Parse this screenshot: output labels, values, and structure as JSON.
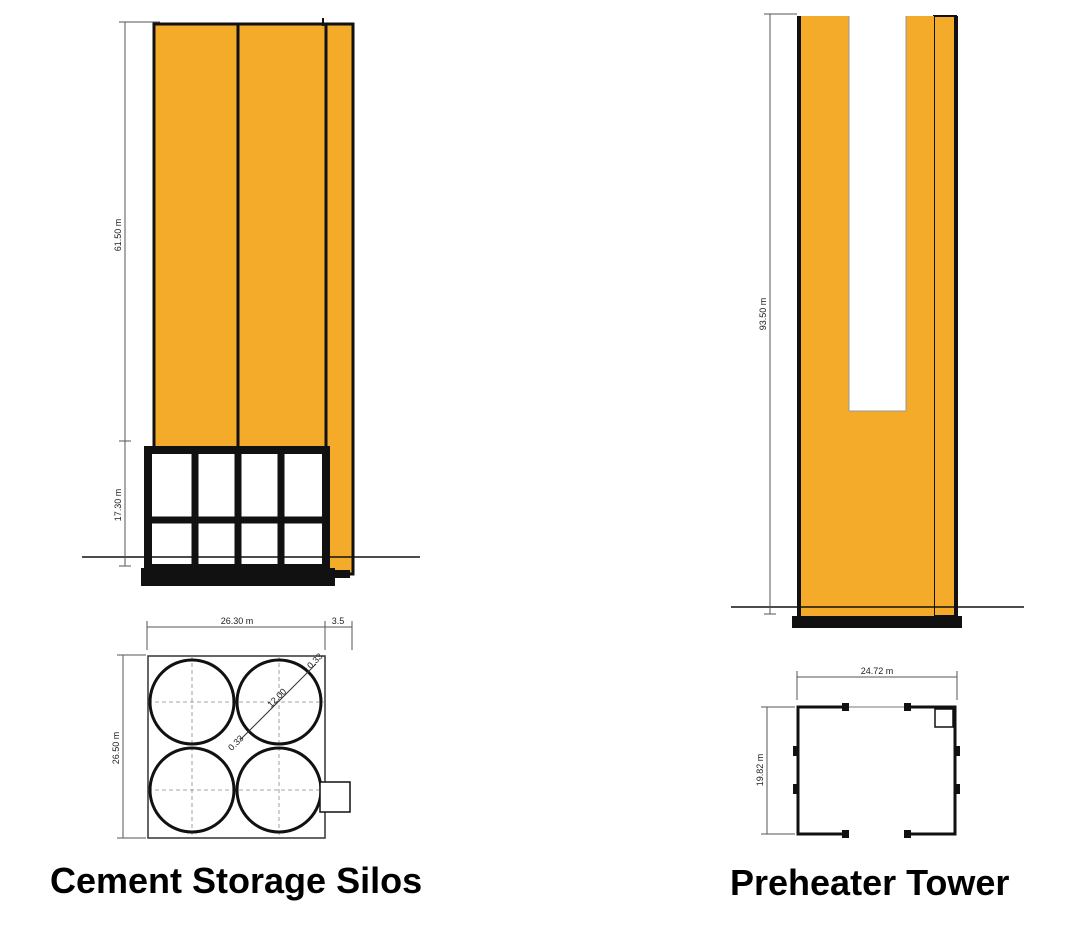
{
  "colors": {
    "fill": "#f4ab2a",
    "outline": "#111111",
    "dimension": "#555555"
  },
  "silos": {
    "caption": "Cement Storage Silos",
    "height_upper": "61.50 m",
    "height_lower": "17.30 m",
    "plan_width": "26.30 m",
    "plan_extra": "3.5",
    "plan_depth": "26.50 m",
    "diameter": "12.00",
    "wall_thickness_a": "0.33",
    "wall_thickness_b": "0.33"
  },
  "tower": {
    "caption": "Preheater Tower",
    "height": "93.50 m",
    "plan_width": "24.72 m",
    "plan_depth": "19.82 m"
  }
}
